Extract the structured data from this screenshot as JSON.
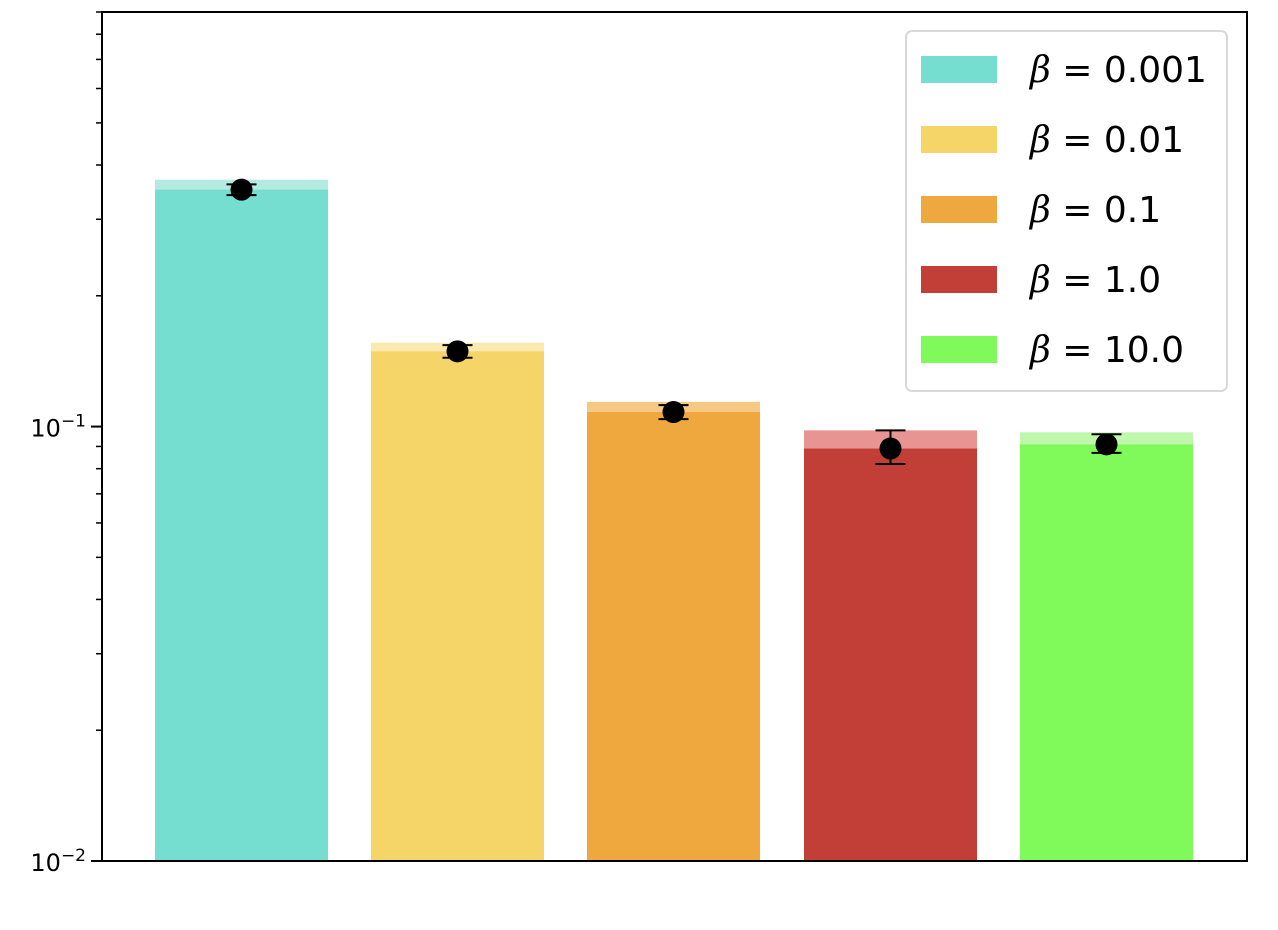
{
  "chart_data": {
    "type": "bar",
    "title": "",
    "xlabel": "",
    "ylabel": "",
    "yscale": "log",
    "ylim": [
      0.01,
      0.9
    ],
    "y_major_ticks": [
      {
        "value": 0.1,
        "base": "10",
        "exp": "−1"
      },
      {
        "value": 0.01,
        "base": "10",
        "exp": "−2"
      }
    ],
    "x_tick_labels": false,
    "grid": false,
    "legend_position": "top-right",
    "series": [
      {
        "name": "β = 0.001",
        "beta_label": "β",
        "value_label": " = 0.001",
        "mean": 0.351,
        "bar_top": 0.37,
        "err_low": 0.341,
        "err_high": 0.361,
        "color": "#76ded0",
        "light_color": "#b3ebe3"
      },
      {
        "name": "β = 0.01",
        "beta_label": "β",
        "value_label": " = 0.01",
        "mean": 0.149,
        "bar_top": 0.156,
        "err_low": 0.144,
        "err_high": 0.154,
        "color": "#f6d568",
        "light_color": "#fae9b0"
      },
      {
        "name": "β = 0.1",
        "beta_label": "β",
        "value_label": " = 0.1",
        "mean": 0.108,
        "bar_top": 0.114,
        "err_low": 0.104,
        "err_high": 0.112,
        "color": "#efa83d",
        "light_color": "#f5c884"
      },
      {
        "name": "β = 1.0",
        "beta_label": "β",
        "value_label": " = 1.0",
        "mean": 0.089,
        "bar_top": 0.098,
        "err_low": 0.082,
        "err_high": 0.098,
        "color": "#c23f38",
        "light_color": "#e89492"
      },
      {
        "name": "β = 10.0",
        "beta_label": "β",
        "value_label": " = 10.0",
        "mean": 0.091,
        "bar_top": 0.097,
        "err_low": 0.087,
        "err_high": 0.096,
        "color": "#80fa5b",
        "light_color": "#bff8ad"
      }
    ]
  }
}
